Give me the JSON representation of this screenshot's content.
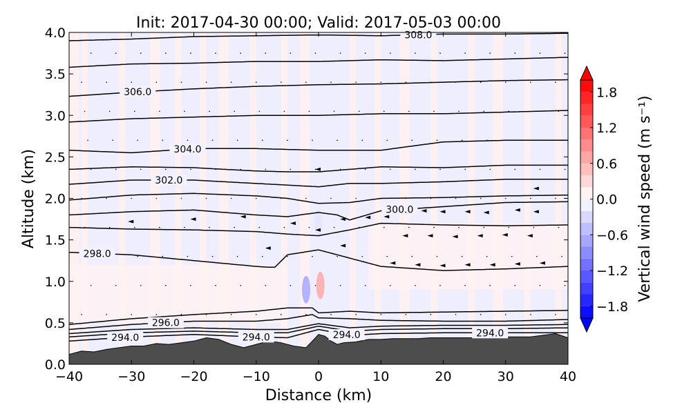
{
  "chart_data": {
    "type": "contour",
    "title": "Init: 2017-04-30 00:00; Valid: 2017-05-03 00:00",
    "xlabel": "Distance (km)",
    "ylabel": "Altitude (km)",
    "xlim": [
      -40,
      40
    ],
    "ylim": [
      0.0,
      4.0
    ],
    "x_ticks": [
      -40,
      -30,
      -20,
      -10,
      0,
      10,
      20,
      30,
      40
    ],
    "x_tick_labels": [
      "−40",
      "−30",
      "−20",
      "−10",
      "0",
      "10",
      "20",
      "30",
      "40"
    ],
    "y_ticks": [
      0.0,
      0.5,
      1.0,
      1.5,
      2.0,
      2.5,
      3.0,
      3.5,
      4.0
    ],
    "y_tick_labels": [
      "0.0",
      "0.5",
      "1.0",
      "1.5",
      "2.0",
      "2.5",
      "3.0",
      "3.5",
      "4.0"
    ],
    "grid": false,
    "colorbar": {
      "label": "Vertical wind speed (m s⁻¹)",
      "range": [
        -2.0,
        2.0
      ],
      "ticks": [
        1.8,
        1.2,
        0.6,
        0.0,
        -0.6,
        -1.2,
        -1.8
      ],
      "tick_labels": [
        "1.8",
        "1.2",
        "0.6",
        "0.0",
        "−0.6",
        "−1.2",
        "−1.8"
      ],
      "levels": [
        -2.0,
        -1.8,
        -1.6,
        -1.4,
        -1.2,
        -1.0,
        -0.8,
        -0.6,
        -0.4,
        -0.2,
        0.0,
        0.2,
        0.4,
        0.6,
        0.8,
        1.0,
        1.2,
        1.4,
        1.6,
        1.8,
        2.0
      ],
      "colormap": "bwr",
      "extend": "both"
    },
    "terrain": {
      "color": "#4d4d4d",
      "x": [
        -40,
        -38,
        -36,
        -34,
        -32,
        -30,
        -28,
        -26,
        -24,
        -22,
        -20,
        -18,
        -16,
        -14,
        -12,
        -10,
        -8,
        -6,
        -4,
        -2,
        -1,
        0,
        1,
        2,
        3,
        4,
        6,
        8,
        10,
        12,
        14,
        16,
        18,
        20,
        22,
        24,
        26,
        28,
        30,
        32,
        34,
        36,
        38,
        40
      ],
      "height": [
        0.12,
        0.16,
        0.15,
        0.18,
        0.2,
        0.22,
        0.22,
        0.25,
        0.24,
        0.26,
        0.28,
        0.32,
        0.3,
        0.24,
        0.2,
        0.24,
        0.28,
        0.26,
        0.22,
        0.2,
        0.28,
        0.36,
        0.34,
        0.28,
        0.24,
        0.26,
        0.27,
        0.3,
        0.3,
        0.31,
        0.31,
        0.31,
        0.32,
        0.32,
        0.32,
        0.32,
        0.32,
        0.32,
        0.33,
        0.33,
        0.33,
        0.35,
        0.37,
        0.32
      ]
    },
    "theta_contours": [
      {
        "level": 294.0,
        "label": "294.0",
        "x": [
          -40,
          -30,
          -20,
          -10,
          -5,
          0,
          5,
          10,
          20,
          30,
          40
        ],
        "y": [
          0.28,
          0.33,
          0.36,
          0.33,
          0.32,
          0.42,
          0.35,
          0.37,
          0.38,
          0.38,
          0.38
        ]
      },
      {
        "level": 294.5,
        "x": [
          -40,
          -30,
          -20,
          -10,
          -5,
          0,
          5,
          10,
          20,
          30,
          40
        ],
        "y": [
          0.33,
          0.38,
          0.4,
          0.38,
          0.38,
          0.46,
          0.4,
          0.42,
          0.43,
          0.43,
          0.44
        ]
      },
      {
        "level": 295.0,
        "x": [
          -40,
          -30,
          -20,
          -10,
          -5,
          0,
          5,
          10,
          20,
          30,
          40
        ],
        "y": [
          0.37,
          0.42,
          0.44,
          0.42,
          0.42,
          0.49,
          0.44,
          0.46,
          0.47,
          0.47,
          0.48
        ]
      },
      {
        "level": 296.0,
        "label": "296.0",
        "x": [
          -40,
          -30,
          -20,
          -10,
          -5,
          -1,
          0,
          5,
          10,
          20,
          30,
          40
        ],
        "y": [
          0.42,
          0.48,
          0.52,
          0.52,
          0.55,
          0.6,
          0.56,
          0.55,
          0.53,
          0.52,
          0.52,
          0.54
        ]
      },
      {
        "level": 297.0,
        "x": [
          -40,
          -30,
          -20,
          -10,
          -5,
          -1,
          0,
          5,
          10,
          20,
          30,
          40
        ],
        "y": [
          0.48,
          0.55,
          0.6,
          0.64,
          0.68,
          0.68,
          0.62,
          0.64,
          0.62,
          0.63,
          0.64,
          0.65
        ]
      },
      {
        "level": 298.0,
        "label": "298.0",
        "x": [
          -40,
          -30,
          -20,
          -10,
          -8,
          -7,
          -5,
          0,
          5,
          10,
          20,
          30,
          40
        ],
        "y": [
          1.35,
          1.32,
          1.25,
          1.18,
          1.17,
          1.17,
          1.32,
          1.38,
          1.28,
          1.18,
          1.13,
          1.15,
          1.18
        ]
      },
      {
        "level": 299.0,
        "x": [
          -40,
          -30,
          -20,
          -10,
          -5,
          0,
          5,
          10,
          20,
          30,
          40
        ],
        "y": [
          1.65,
          1.63,
          1.62,
          1.6,
          1.57,
          1.55,
          1.62,
          1.7,
          1.68,
          1.67,
          1.68
        ]
      },
      {
        "level": 300.0,
        "label": "300.0",
        "x": [
          -40,
          -30,
          -20,
          -10,
          -5,
          0,
          3,
          5,
          10,
          20,
          30,
          40
        ],
        "y": [
          1.8,
          1.84,
          1.86,
          1.8,
          1.78,
          1.83,
          1.8,
          1.74,
          1.85,
          1.9,
          1.95,
          1.96
        ]
      },
      {
        "level": 301.0,
        "x": [
          -40,
          -30,
          -20,
          -10,
          -5,
          0,
          5,
          10,
          20,
          30,
          40
        ],
        "y": [
          1.98,
          2.04,
          2.06,
          2.03,
          2.0,
          1.94,
          1.95,
          2.0,
          2.01,
          2.03,
          2.04
        ]
      },
      {
        "level": 302.0,
        "label": "302.0",
        "x": [
          -40,
          -30,
          -20,
          -10,
          -5,
          0,
          5,
          10,
          20,
          30,
          40
        ],
        "y": [
          2.17,
          2.22,
          2.22,
          2.18,
          2.16,
          2.14,
          2.18,
          2.18,
          2.2,
          2.23,
          2.23
        ]
      },
      {
        "level": 303.0,
        "x": [
          -40,
          -30,
          -20,
          -10,
          -5,
          0,
          5,
          10,
          20,
          30,
          40
        ],
        "y": [
          2.35,
          2.38,
          2.37,
          2.33,
          2.32,
          2.32,
          2.35,
          2.38,
          2.37,
          2.4,
          2.4
        ]
      },
      {
        "level": 304.0,
        "label": "304.0",
        "x": [
          -40,
          -30,
          -20,
          -10,
          0,
          10,
          20,
          30,
          40
        ],
        "y": [
          2.58,
          2.55,
          2.6,
          2.6,
          2.58,
          2.58,
          2.68,
          2.7,
          2.7
        ]
      },
      {
        "level": 305.0,
        "x": [
          -40,
          -30,
          -20,
          -10,
          0,
          10,
          20,
          30,
          40
        ],
        "y": [
          2.92,
          2.96,
          2.98,
          3.0,
          3.0,
          3.02,
          3.02,
          3.04,
          3.06
        ]
      },
      {
        "level": 306.0,
        "label": "306.0",
        "x": [
          -40,
          -30,
          -20,
          -10,
          0,
          10,
          20,
          30,
          40
        ],
        "y": [
          3.23,
          3.28,
          3.32,
          3.35,
          3.37,
          3.38,
          3.4,
          3.42,
          3.43
        ]
      },
      {
        "level": 307.0,
        "x": [
          -40,
          -30,
          -20,
          -10,
          0,
          10,
          20,
          30,
          40
        ],
        "y": [
          3.58,
          3.62,
          3.63,
          3.65,
          3.65,
          3.67,
          3.66,
          3.68,
          3.7
        ]
      },
      {
        "level": 308.0,
        "label": "308.0",
        "x": [
          -40,
          -30,
          -20,
          -10,
          0,
          10,
          20,
          30,
          40
        ],
        "y": [
          3.9,
          3.92,
          3.95,
          3.96,
          3.97,
          3.96,
          3.98,
          3.98,
          3.99
        ]
      }
    ],
    "w_anomalies": [
      {
        "x": -2.0,
        "y": 0.9,
        "value": -0.6
      },
      {
        "x": 0.3,
        "y": 0.95,
        "value": 0.6
      },
      {
        "x": 0.0,
        "y": 1.7,
        "value": -0.2
      }
    ],
    "wind_vectors": [
      {
        "x": 17,
        "y": 1.85
      },
      {
        "x": 20,
        "y": 1.84
      },
      {
        "x": 24,
        "y": 1.84
      },
      {
        "x": 27,
        "y": 1.83
      },
      {
        "x": 32,
        "y": 1.86
      },
      {
        "x": 35,
        "y": 1.84
      },
      {
        "x": 11,
        "y": 1.78
      },
      {
        "x": 14,
        "y": 1.82
      },
      {
        "x": 4,
        "y": 1.75
      },
      {
        "x": 8,
        "y": 1.77
      },
      {
        "x": -4,
        "y": 1.7
      },
      {
        "x": 0,
        "y": 2.35
      },
      {
        "x": 14,
        "y": 1.55
      },
      {
        "x": 18,
        "y": 1.55
      },
      {
        "x": 22,
        "y": 1.54
      },
      {
        "x": 26,
        "y": 1.55
      },
      {
        "x": 30,
        "y": 1.56
      },
      {
        "x": 34,
        "y": 1.55
      },
      {
        "x": 12,
        "y": 1.22
      },
      {
        "x": 16,
        "y": 1.2
      },
      {
        "x": 20,
        "y": 1.19
      },
      {
        "x": 24,
        "y": 1.2
      },
      {
        "x": 28,
        "y": 1.2
      },
      {
        "x": 32,
        "y": 1.21
      },
      {
        "x": 36,
        "y": 1.22
      },
      {
        "x": -30,
        "y": 1.72
      },
      {
        "x": -20,
        "y": 1.75
      },
      {
        "x": -12,
        "y": 1.78
      },
      {
        "x": -8,
        "y": 1.4
      },
      {
        "x": 0,
        "y": 1.62
      },
      {
        "x": 4,
        "y": 1.43
      },
      {
        "x": 35,
        "y": 2.12
      }
    ]
  }
}
